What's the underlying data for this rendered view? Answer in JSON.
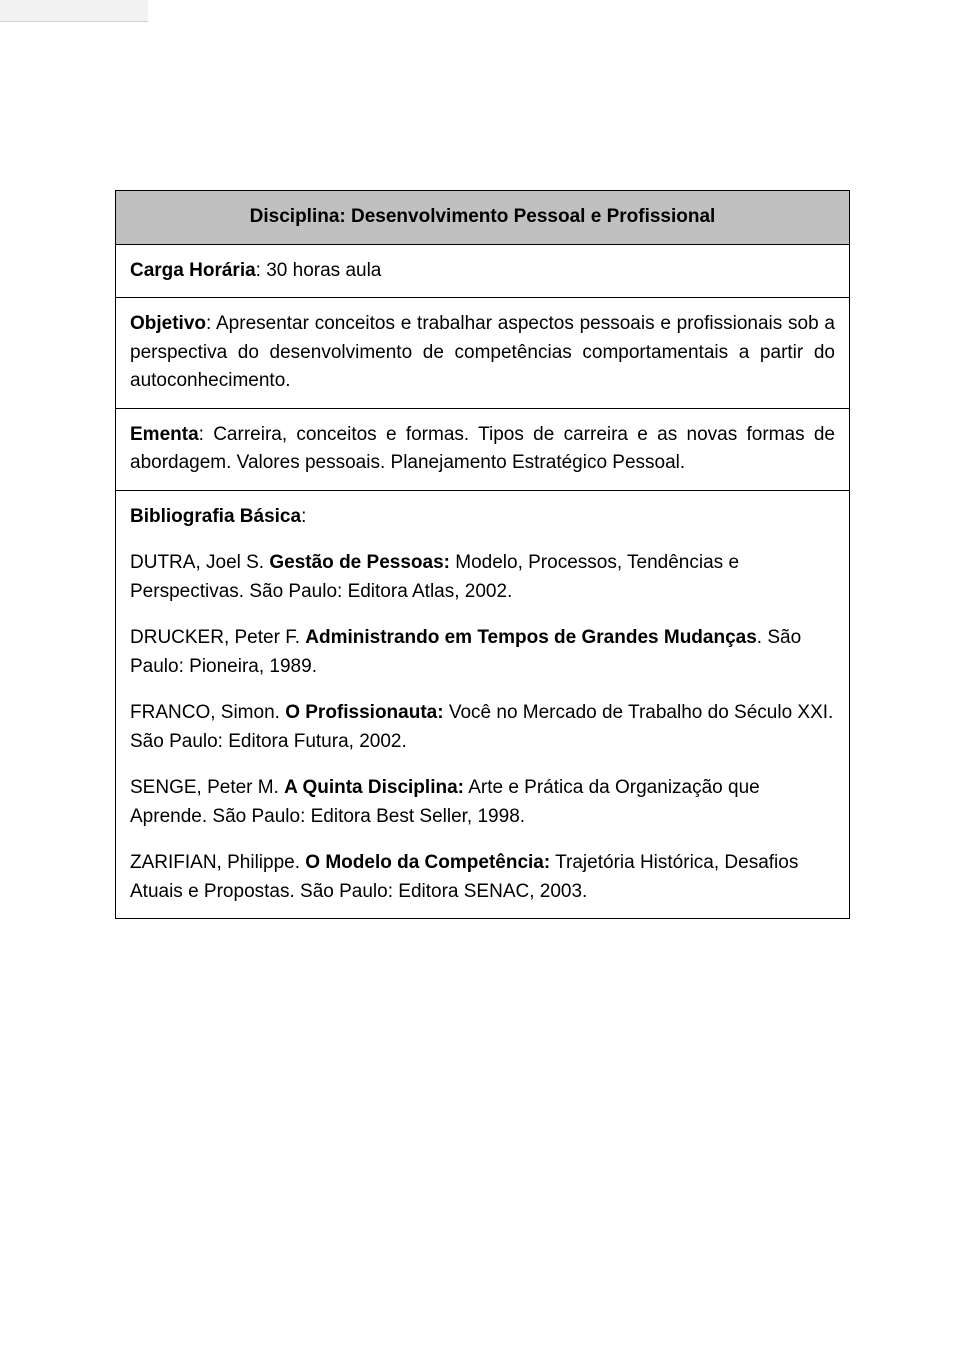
{
  "colors": {
    "page_bg": "#ffffff",
    "header_bg": "#c0c0c0",
    "border": "#000000",
    "text": "#000000",
    "tab_bg": "#f2f2f2"
  },
  "syllabus": {
    "title": "Disciplina: Desenvolvimento Pessoal e Profissional",
    "carga_label": "Carga Horária",
    "carga_value": ": 30 horas aula",
    "objetivo_label": "Objetivo",
    "objetivo_text": ": Apresentar conceitos e trabalhar aspectos pessoais e profissionais sob a perspectiva do desenvolvimento de competências comportamentais a partir do autoconhecimento.",
    "ementa_label": "Ementa",
    "ementa_text": ": Carreira, conceitos e formas. Tipos de carreira e as novas formas de abordagem. Valores pessoais. Planejamento Estratégico Pessoal.",
    "bibliografia_label": "Bibliografia Básica",
    "bibliografia_colon": ":",
    "refs": [
      {
        "author": "DUTRA, Joel S. ",
        "title": "Gestão de Pessoas:",
        "rest": " Modelo, Processos, Tendências e Perspectivas. São Paulo: Editora Atlas, 2002."
      },
      {
        "author": "DRUCKER, Peter F. ",
        "title": "Administrando em Tempos de Grandes Mudanças",
        "rest": ". São Paulo: Pioneira, 1989."
      },
      {
        "author": "FRANCO, Simon. ",
        "title": "O Profissionauta:",
        "rest": " Você no Mercado de Trabalho do Século XXI. São Paulo: Editora Futura, 2002."
      },
      {
        "author": "SENGE, Peter M. ",
        "title": "A Quinta Disciplina:",
        "rest": " Arte e Prática da Organização que Aprende. São Paulo: Editora Best Seller, 1998."
      },
      {
        "author": "ZARIFIAN, Philippe. ",
        "title": "O Modelo da Competência:",
        "rest": " Trajetória Histórica, Desafios Atuais e Propostas. São Paulo: Editora SENAC, 2003."
      }
    ]
  }
}
